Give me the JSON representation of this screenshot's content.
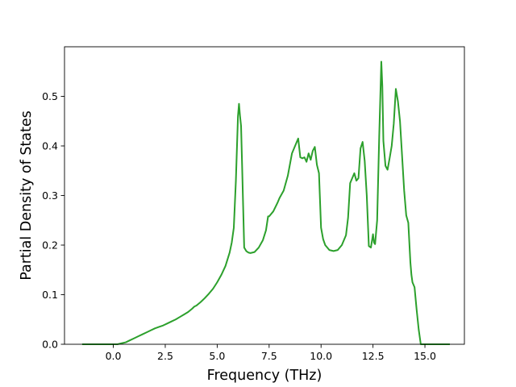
{
  "chart_data": {
    "type": "line",
    "title": "",
    "xlabel": "Frequency (THz)",
    "ylabel": "Partial Density of States",
    "xlim": [
      -2.35,
      16.9
    ],
    "ylim": [
      0.0,
      0.6
    ],
    "xticks": [
      0.0,
      2.5,
      5.0,
      7.5,
      10.0,
      12.5,
      15.0
    ],
    "xtick_labels": [
      "0.0",
      "2.5",
      "5.0",
      "7.5",
      "10.0",
      "12.5",
      "15.0"
    ],
    "yticks": [
      0.0,
      0.1,
      0.2,
      0.3,
      0.4,
      0.5
    ],
    "ytick_labels": [
      "0.0",
      "0.1",
      "0.2",
      "0.3",
      "0.4",
      "0.5"
    ],
    "grid": false,
    "legend": "none",
    "series": [
      {
        "color": "#2ca02c",
        "x": [
          -1.5,
          -0.5,
          0.0,
          0.2,
          0.4,
          0.6,
          0.8,
          1.0,
          1.2,
          1.4,
          1.6,
          1.8,
          2.0,
          2.2,
          2.4,
          2.6,
          2.8,
          3.0,
          3.2,
          3.4,
          3.6,
          3.8,
          3.9,
          4.0,
          4.2,
          4.4,
          4.6,
          4.8,
          5.0,
          5.2,
          5.4,
          5.6,
          5.7,
          5.8,
          5.9,
          6.0,
          6.05,
          6.1,
          6.15,
          6.2,
          6.3,
          6.4,
          6.5,
          6.6,
          6.8,
          7.0,
          7.2,
          7.35,
          7.45,
          7.5,
          7.7,
          7.9,
          8.0,
          8.2,
          8.4,
          8.6,
          8.8,
          8.9,
          9.0,
          9.1,
          9.2,
          9.3,
          9.4,
          9.5,
          9.6,
          9.7,
          9.8,
          9.9,
          10.0,
          10.1,
          10.2,
          10.4,
          10.6,
          10.8,
          11.0,
          11.2,
          11.3,
          11.4,
          11.5,
          11.6,
          11.7,
          11.8,
          11.9,
          12.0,
          12.1,
          12.2,
          12.3,
          12.4,
          12.5,
          12.55,
          12.6,
          12.7,
          12.8,
          12.9,
          12.95,
          13.0,
          13.1,
          13.2,
          13.3,
          13.4,
          13.5,
          13.6,
          13.7,
          13.8,
          13.9,
          14.0,
          14.1,
          14.2,
          14.3,
          14.35,
          14.4,
          14.5,
          14.6,
          14.7,
          14.8,
          14.82,
          15.0,
          16.2
        ],
        "y": [
          0.0,
          0.0,
          0.0,
          0.0,
          0.002,
          0.004,
          0.008,
          0.012,
          0.016,
          0.02,
          0.024,
          0.028,
          0.032,
          0.035,
          0.038,
          0.042,
          0.046,
          0.05,
          0.055,
          0.06,
          0.065,
          0.072,
          0.076,
          0.078,
          0.085,
          0.093,
          0.102,
          0.112,
          0.125,
          0.14,
          0.158,
          0.185,
          0.205,
          0.235,
          0.33,
          0.46,
          0.485,
          0.46,
          0.44,
          0.36,
          0.195,
          0.188,
          0.185,
          0.184,
          0.186,
          0.195,
          0.21,
          0.23,
          0.258,
          0.258,
          0.268,
          0.285,
          0.295,
          0.31,
          0.34,
          0.385,
          0.405,
          0.415,
          0.377,
          0.375,
          0.377,
          0.368,
          0.385,
          0.372,
          0.39,
          0.398,
          0.362,
          0.345,
          0.235,
          0.212,
          0.2,
          0.19,
          0.188,
          0.19,
          0.2,
          0.22,
          0.255,
          0.325,
          0.335,
          0.345,
          0.33,
          0.335,
          0.395,
          0.408,
          0.37,
          0.3,
          0.198,
          0.195,
          0.222,
          0.205,
          0.202,
          0.25,
          0.42,
          0.57,
          0.52,
          0.41,
          0.36,
          0.352,
          0.375,
          0.4,
          0.445,
          0.515,
          0.49,
          0.45,
          0.38,
          0.31,
          0.26,
          0.245,
          0.165,
          0.14,
          0.125,
          0.115,
          0.07,
          0.03,
          0.0,
          0.0,
          0.0,
          0.0
        ]
      }
    ]
  }
}
